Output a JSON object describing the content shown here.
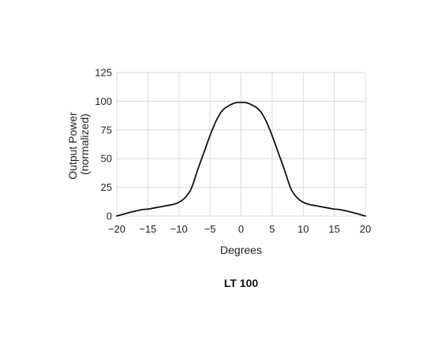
{
  "chart_data": {
    "type": "line",
    "title": "",
    "caption": "LT 100",
    "xlabel": "Degrees",
    "ylabel_lines": [
      "Output Power",
      "(normalized)"
    ],
    "xlim": [
      -20,
      20
    ],
    "ylim": [
      0,
      125
    ],
    "x_ticks": [
      -20,
      -15,
      -10,
      -5,
      0,
      5,
      10,
      15,
      20
    ],
    "x_tick_labels": [
      "−20",
      "−15",
      "−10",
      "−5",
      "0",
      "5",
      "10",
      "15",
      "20"
    ],
    "y_ticks": [
      0,
      25,
      50,
      75,
      100,
      125
    ],
    "y_tick_labels": [
      "0",
      "25",
      "50",
      "75",
      "100",
      "125"
    ],
    "grid": true,
    "legend": "none",
    "colors": {
      "line": "#111111",
      "grid": "#d9d9d9",
      "text": "#222222"
    },
    "series": [
      {
        "x": [
          -20,
          -18,
          -16,
          -15,
          -14,
          -12,
          -11,
          -10,
          -9,
          -8,
          -7,
          -6,
          -5,
          -4,
          -3,
          -2,
          -1,
          0,
          1,
          2,
          3,
          4,
          5,
          6,
          7,
          8,
          9,
          10,
          11,
          12,
          14,
          15,
          16,
          18,
          20
        ],
        "y": [
          0,
          3,
          5.5,
          6,
          7,
          9,
          10,
          12,
          16,
          24,
          40,
          55,
          70,
          83,
          92,
          96,
          98.5,
          99,
          98.5,
          96,
          92,
          83,
          70,
          55,
          40,
          24,
          16,
          12,
          10,
          9,
          7,
          6,
          5.5,
          3,
          0
        ]
      }
    ]
  }
}
